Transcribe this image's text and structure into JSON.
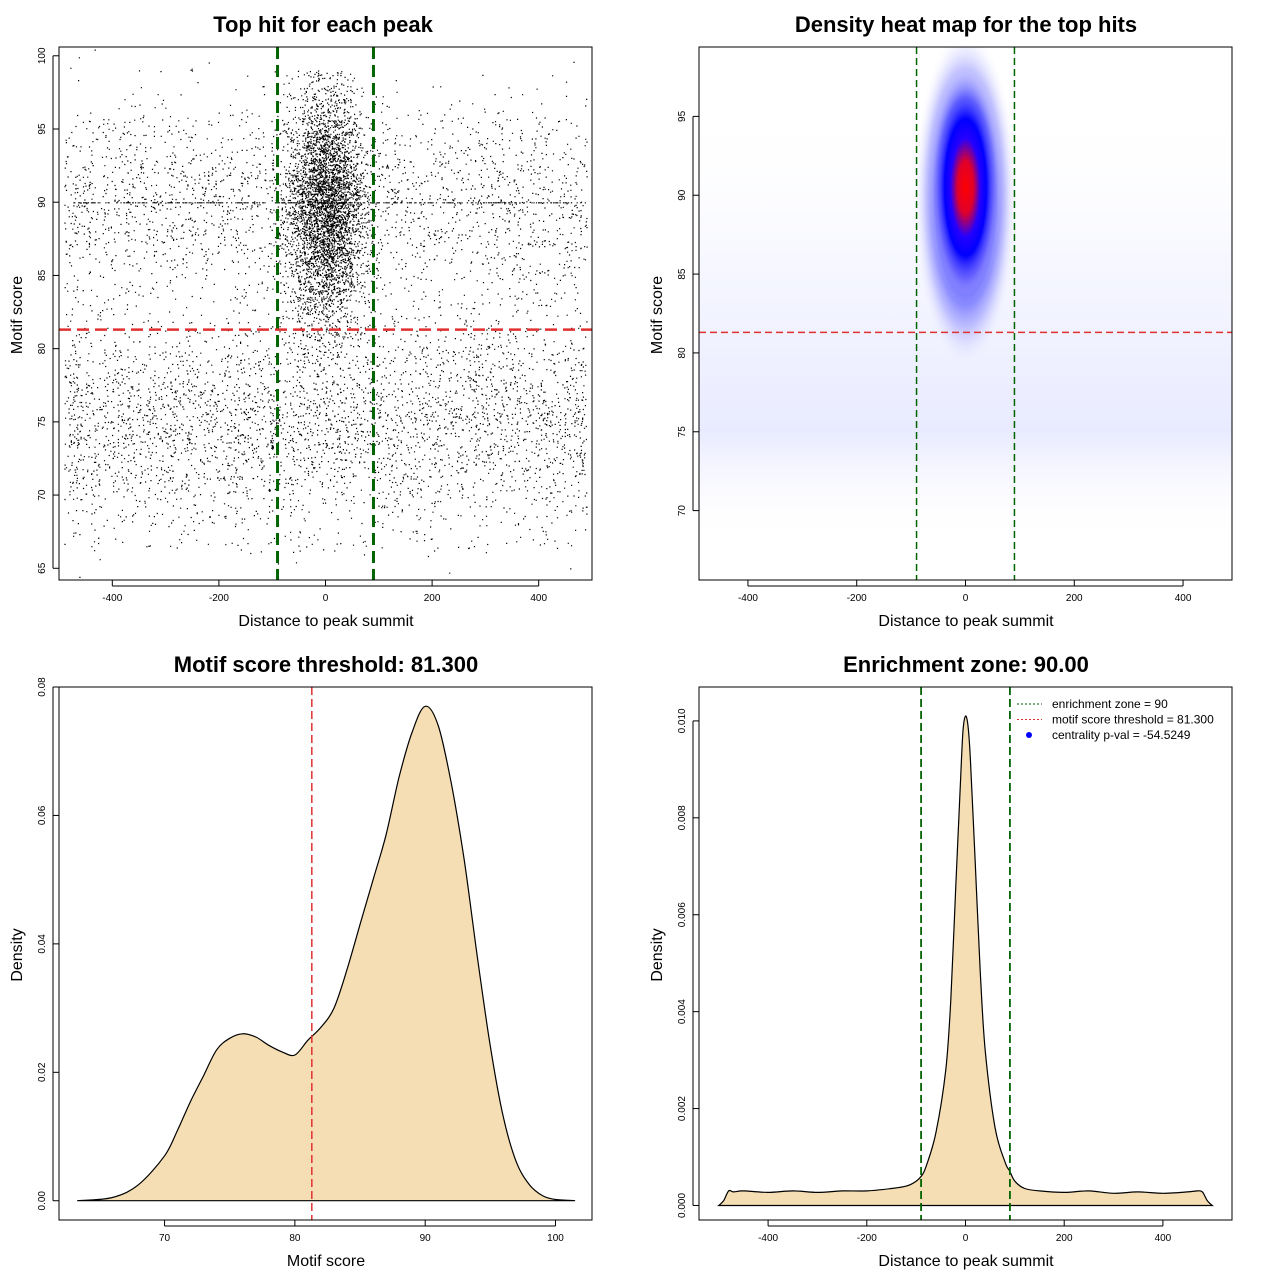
{
  "chart_data": [
    {
      "type": "scatter",
      "title": "Top hit for each peak",
      "xlabel": "Distance to peak summit",
      "ylabel": "Motif score",
      "xlim": [
        -500,
        500
      ],
      "ylim": [
        64.2,
        100.6
      ],
      "xticks": [
        -400,
        -200,
        0,
        200,
        400
      ],
      "yticks": [
        65,
        70,
        75,
        80,
        85,
        90,
        95,
        100
      ],
      "points_note": "approx. 20000 points: dense central cluster around x=0, y=90 (x sd ~35, y sd ~4); uniform background across x in [-490,490] with y mostly 70-85 plus a faint row at y=90",
      "cluster": {
        "x_mean": 0,
        "x_sd": 35,
        "y_mean": 89.5,
        "y_sd": 4.0,
        "y_min": 79,
        "y_max": 99
      },
      "background_bands": [
        {
          "y_mean": 75,
          "y_sd": 3.5
        },
        {
          "y_mean": 90,
          "y_sd": 3.5
        }
      ],
      "vlines": [
        -90,
        90
      ],
      "hline": 81.3,
      "vline_color": "#006400",
      "hline_color": "#e03030"
    },
    {
      "type": "heatmap",
      "title": "Density heat map for the top hits",
      "xlabel": "Distance to peak summit",
      "ylabel": "Motif score",
      "xlim": [
        -490,
        490
      ],
      "ylim": [
        65.6,
        99.4
      ],
      "xticks": [
        -400,
        -200,
        0,
        200,
        400
      ],
      "yticks": [
        70,
        75,
        80,
        85,
        90,
        95
      ],
      "hotspot": {
        "x": 0,
        "y": 90.5
      },
      "colors": [
        "#ffffff",
        "#0000ff",
        "#ff0000"
      ],
      "vlines": [
        -90,
        90
      ],
      "hline": 81.3,
      "vline_color": "#006400",
      "hline_color": "#e03030"
    },
    {
      "type": "area",
      "title": "Motif score threshold: 81.300",
      "xlabel": "Motif score",
      "ylabel": "Density",
      "xlim": [
        61.9,
        102.8
      ],
      "ylim": [
        -0.003,
        0.08
      ],
      "xticks": [
        70,
        80,
        90,
        100
      ],
      "yticks": [
        0.0,
        0.02,
        0.04,
        0.06,
        0.08
      ],
      "ytick_labels": [
        "0.00",
        "0.02",
        "0.04",
        "0.06",
        "0.08"
      ],
      "x": [
        63.3,
        66,
        68,
        70,
        71,
        72,
        73,
        74,
        75,
        76,
        77,
        78,
        79,
        80,
        81,
        82,
        83,
        84,
        85,
        86,
        87,
        88,
        89,
        90,
        91,
        92,
        93,
        94,
        95,
        96,
        97,
        98,
        99,
        100,
        101.5
      ],
      "y": [
        0.0,
        0.0005,
        0.0025,
        0.007,
        0.011,
        0.0155,
        0.0195,
        0.0235,
        0.0253,
        0.026,
        0.0255,
        0.0242,
        0.0232,
        0.0227,
        0.025,
        0.027,
        0.03,
        0.036,
        0.043,
        0.05,
        0.057,
        0.066,
        0.073,
        0.077,
        0.074,
        0.065,
        0.053,
        0.038,
        0.024,
        0.013,
        0.006,
        0.0025,
        0.0008,
        0.0002,
        0.0
      ],
      "fill": "#f5deb3",
      "vline": 81.3,
      "vline_color": "#e03030"
    },
    {
      "type": "area",
      "title": "Enrichment zone: 90.00",
      "xlabel": "Distance to peak summit",
      "ylabel": "Density",
      "xlim": [
        -540,
        540
      ],
      "ylim": [
        -0.0003,
        0.0107
      ],
      "xticks": [
        -400,
        -200,
        0,
        200,
        400
      ],
      "yticks": [
        0.0,
        0.002,
        0.004,
        0.006,
        0.008,
        0.01
      ],
      "ytick_labels": [
        "0.000",
        "0.002",
        "0.004",
        "0.006",
        "0.008",
        "0.010"
      ],
      "x": [
        -500,
        -490,
        -480,
        -470,
        -450,
        -400,
        -350,
        -300,
        -250,
        -200,
        -150,
        -120,
        -100,
        -90,
        -80,
        -60,
        -40,
        -30,
        -20,
        -10,
        -5,
        0,
        5,
        10,
        20,
        30,
        40,
        60,
        80,
        90,
        100,
        120,
        150,
        200,
        250,
        300,
        350,
        400,
        450,
        470,
        480,
        490,
        500
      ],
      "y": [
        0.0,
        0.0001,
        0.0003,
        0.00028,
        0.0003,
        0.00027,
        0.0003,
        0.00027,
        0.0003,
        0.0003,
        0.00035,
        0.0004,
        0.0005,
        0.0006,
        0.0008,
        0.0015,
        0.0028,
        0.0042,
        0.0065,
        0.0088,
        0.0098,
        0.0101,
        0.0099,
        0.0092,
        0.007,
        0.0048,
        0.0032,
        0.0016,
        0.0009,
        0.0007,
        0.0005,
        0.00035,
        0.0003,
        0.00027,
        0.0003,
        0.00025,
        0.00028,
        0.00025,
        0.00028,
        0.0003,
        0.00028,
        0.0001,
        0.0
      ],
      "fill": "#f5deb3",
      "vlines": [
        -90,
        90
      ],
      "vline_color": "#006400",
      "legend": {
        "placement": "top-right",
        "entries": [
          {
            "label": "enrichment zone = 90",
            "style": "dotted-line",
            "color": "#006400"
          },
          {
            "label": "motif score threshold = 81.300",
            "style": "dotted-line",
            "color": "#e03030"
          },
          {
            "label": "centrality p-val = -54.5249",
            "style": "point",
            "color": "#0000ff"
          }
        ]
      }
    }
  ]
}
